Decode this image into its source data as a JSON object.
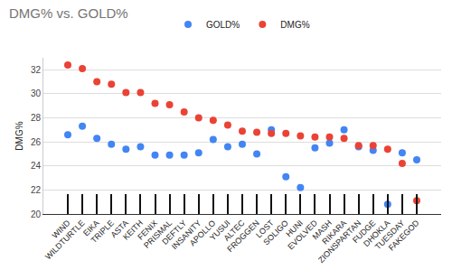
{
  "chart_data": {
    "type": "scatter",
    "title": "DMG% vs. GOLD%",
    "y_label": "DMG%",
    "categories": [
      "WIND",
      "WILDTURTLE",
      "EIKA",
      "TRIPLE",
      "ASTA",
      "KEITH",
      "FENIX",
      "PRISMAL",
      "DEFTLY",
      "INSANITY",
      "APOLLO",
      "YUSUI",
      "ALTEC",
      "FROGGEN",
      "LOST",
      "SOLIGO",
      "HUNI",
      "EVOLVED",
      "MASH",
      "RIKARA",
      "ZIONSPARTAN",
      "FUDGE",
      "DHOKLA",
      "TUESDAY",
      "FAKEGOD"
    ],
    "series": [
      {
        "name": "GOLD%",
        "color": "#4285f4",
        "values": [
          26.6,
          27.3,
          26.3,
          25.8,
          25.4,
          25.6,
          24.9,
          24.9,
          24.9,
          25.1,
          26.2,
          25.6,
          25.8,
          25.0,
          27.0,
          23.1,
          22.2,
          25.5,
          25.9,
          27.0,
          25.6,
          25.3,
          20.8,
          25.1,
          24.5
        ]
      },
      {
        "name": "DMG%",
        "color": "#ea4335",
        "values": [
          32.4,
          32.1,
          31.0,
          30.8,
          30.1,
          30.1,
          29.2,
          29.1,
          28.5,
          28.0,
          27.8,
          27.4,
          26.9,
          26.8,
          26.7,
          26.7,
          26.5,
          26.4,
          26.4,
          26.3,
          25.7,
          25.7,
          25.4,
          24.2,
          21.1
        ]
      }
    ],
    "ylim": [
      20,
      33
    ],
    "yticks": [
      20,
      22,
      24,
      26,
      28,
      30,
      32
    ],
    "grid": true,
    "legend": "top",
    "marker": "circle"
  }
}
